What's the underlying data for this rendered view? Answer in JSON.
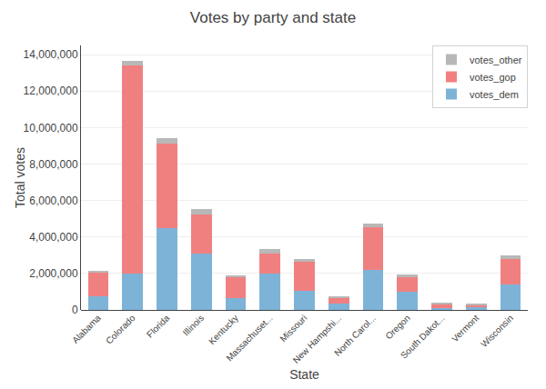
{
  "chart_data": {
    "type": "bar",
    "stacked": true,
    "title": "Votes by party and state",
    "xlabel": "State",
    "ylabel": "Total votes",
    "categories": [
      "Alabama",
      "Colorado",
      "Florida",
      "Illinois",
      "Kentucky",
      "Massachuset...",
      "Missouri",
      "New Hampshi...",
      "North Carol...",
      "Oregon",
      "South Dakot...",
      "Vermont",
      "Wisconsin"
    ],
    "series": [
      {
        "name": "votes_dem",
        "color": "#7EB3D8",
        "values": [
          729547,
          1995196,
          4504975,
          3090729,
          628854,
          1995196,
          1071068,
          348526,
          2189316,
          1002106,
          117458,
          178573,
          1382536
        ]
      },
      {
        "name": "votes_gop",
        "color": "#F08080",
        "values": [
          1318255,
          11420713,
          4617886,
          2146015,
          1202971,
          1090893,
          1594511,
          345790,
          2362631,
          782403,
          227721,
          95369,
          1405284
        ]
      },
      {
        "name": "votes_other",
        "color": "#B8B8B8",
        "values": [
          75570,
          238866,
          297178,
          299680,
          82493,
          238957,
          143026,
          49980,
          189617,
          143633,
          20845,
          41125,
          188330
        ]
      }
    ],
    "ylim": [
      0,
      14500000
    ],
    "yticks": [
      0,
      {
        "value": 2000000,
        "label": "2,000,000"
      },
      {
        "value": 4000000,
        "label": "4,000,000"
      },
      {
        "value": 6000000,
        "label": "6,000,000"
      },
      {
        "value": 8000000,
        "label": "8,000,000"
      },
      {
        "value": 10000000,
        "label": "10,000,000"
      },
      {
        "value": 12000000,
        "label": "12,000,000"
      },
      {
        "value": 14000000,
        "label": "14,000,000"
      }
    ],
    "grid": true,
    "legend": "upper right"
  }
}
